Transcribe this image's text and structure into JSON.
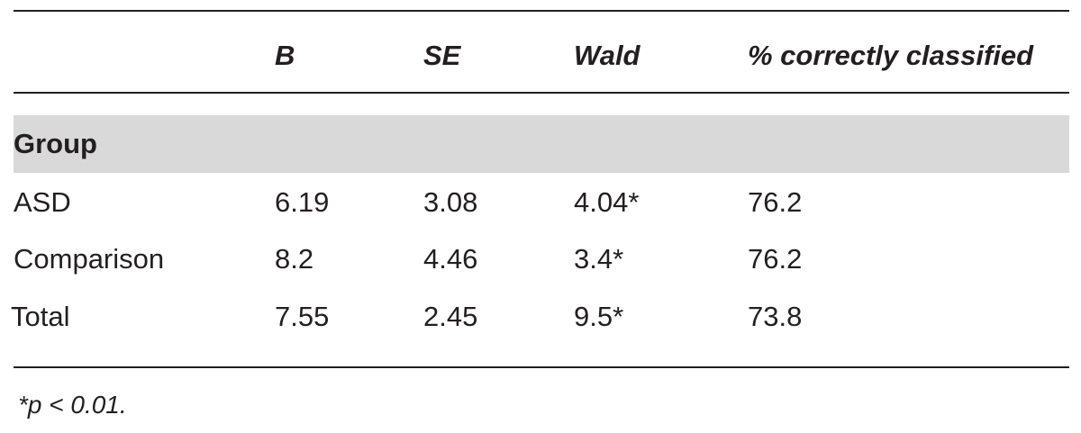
{
  "table": {
    "columns": [
      "B",
      "SE",
      "Wald",
      "% correctly classified"
    ],
    "group": "Group",
    "rows": [
      [
        "ASD",
        "6.19",
        "3.08",
        "4.04*",
        "76.2"
      ],
      [
        "Comparison",
        "8.2",
        "4.46",
        "3.4*",
        "76.2"
      ],
      [
        "Total",
        "7.55",
        "2.45",
        "9.5*",
        "73.8"
      ]
    ],
    "footnote": "*p < 0.01."
  }
}
